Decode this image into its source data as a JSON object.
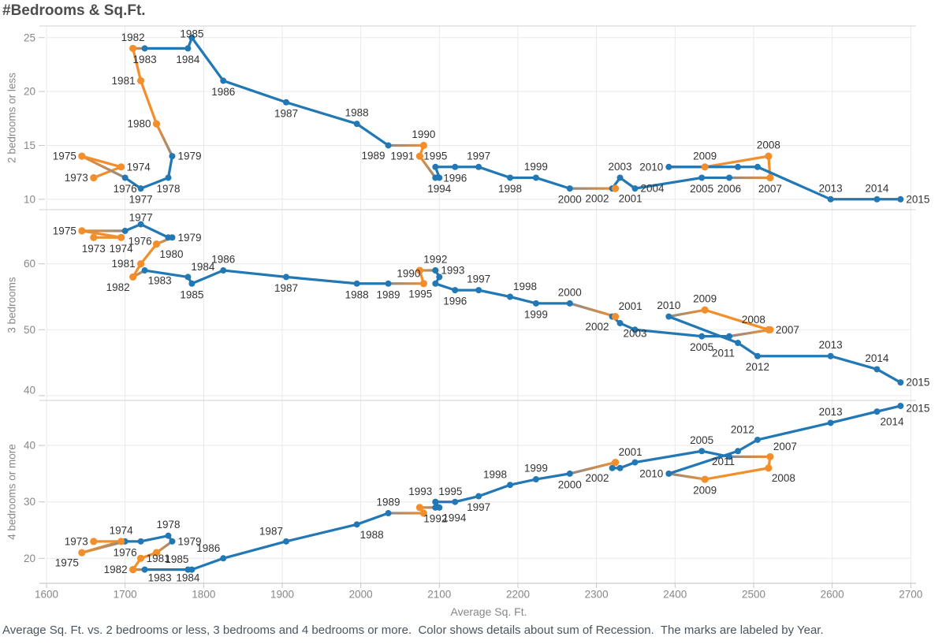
{
  "title": "#Bedrooms & Sq.Ft.",
  "caption": "Average Sq. Ft. vs. 2 bedrooms or less, 3 bedrooms and 4 bedrooms or more.  Color shows details about sum of Recession.  The marks are labeled by Year.",
  "colors": {
    "recession_orange": "#f28e2b",
    "normal_blue": "#2278b5",
    "mixed_gray": "#8b8b8b",
    "gridline": "#e9e9e9",
    "panel_border": "#d2d2d2",
    "axis_line": "#bdbdbd",
    "tick_mark": "#c6c6c6",
    "axis_text": "#878787",
    "year_label_text": "#333333"
  },
  "chart_data": {
    "type": "line",
    "title": "#Bedrooms & Sq.Ft.",
    "xlabel": "Average Sq. Ft.",
    "x_ticks": [
      1600,
      1700,
      1800,
      1900,
      2000,
      2100,
      2200,
      2300,
      2400,
      2500,
      2600,
      2700
    ],
    "x_range": [
      1600,
      2700
    ],
    "grid": true,
    "legend": "none",
    "marks_labeled_by": "Year",
    "color_by": "sum of Recession",
    "recession_years": [
      1973,
      1974,
      1975,
      1980,
      1981,
      1982,
      1990,
      1991,
      2001,
      2007,
      2008,
      2009
    ],
    "panels": [
      {
        "ylabel": "2 bedrooms or less",
        "y_ticks": [
          25,
          20,
          15,
          10
        ],
        "series_key": "pct_2bed_or_less"
      },
      {
        "ylabel": "3 bedrooms",
        "y_ticks": [
          60,
          50,
          40
        ],
        "series_key": "pct_3bed"
      },
      {
        "ylabel": "4 bedrooms or more",
        "y_ticks": [
          40,
          30,
          20
        ],
        "series_key": "pct_4bed_or_more"
      }
    ],
    "points": [
      {
        "year": 1973,
        "avg_sqft": 1660,
        "pct_2bed_or_less": 12,
        "pct_3bed": 64,
        "pct_4bed_or_more": 23,
        "labels": [
          "l",
          "b",
          "l"
        ]
      },
      {
        "year": 1974,
        "avg_sqft": 1695,
        "pct_2bed_or_less": 13,
        "pct_3bed": 64,
        "pct_4bed_or_more": 23,
        "labels": [
          "r",
          "b",
          "t"
        ]
      },
      {
        "year": 1975,
        "avg_sqft": 1645,
        "pct_2bed_or_less": 14,
        "pct_3bed": 65,
        "pct_4bed_or_more": 21,
        "labels": [
          "l",
          "l",
          "bl"
        ]
      },
      {
        "year": 1976,
        "avg_sqft": 1700,
        "pct_2bed_or_less": 12,
        "pct_3bed": 65,
        "pct_4bed_or_more": 23,
        "labels": [
          "b",
          "br",
          "b"
        ]
      },
      {
        "year": 1977,
        "avg_sqft": 1720,
        "pct_2bed_or_less": 11,
        "pct_3bed": 66,
        "pct_4bed_or_more": 23,
        "labels": [
          "b",
          "t",
          ""
        ]
      },
      {
        "year": 1978,
        "avg_sqft": 1755,
        "pct_2bed_or_less": 12,
        "pct_3bed": 64,
        "pct_4bed_or_more": 24,
        "labels": [
          "b",
          "",
          "t"
        ]
      },
      {
        "year": 1979,
        "avg_sqft": 1760,
        "pct_2bed_or_less": 14,
        "pct_3bed": 64,
        "pct_4bed_or_more": 23,
        "labels": [
          "r",
          "r",
          "r"
        ]
      },
      {
        "year": 1980,
        "avg_sqft": 1740,
        "pct_2bed_or_less": 17,
        "pct_3bed": 63,
        "pct_4bed_or_more": 21,
        "labels": [
          "l",
          "br",
          ""
        ]
      },
      {
        "year": 1981,
        "avg_sqft": 1720,
        "pct_2bed_or_less": 21,
        "pct_3bed": 60,
        "pct_4bed_or_more": 20,
        "labels": [
          "l",
          "l",
          "r"
        ]
      },
      {
        "year": 1982,
        "avg_sqft": 1710,
        "pct_2bed_or_less": 24,
        "pct_3bed": 58,
        "pct_4bed_or_more": 18,
        "labels": [
          "t",
          "bl",
          "l"
        ]
      },
      {
        "year": 1983,
        "avg_sqft": 1725,
        "pct_2bed_or_less": 24,
        "pct_3bed": 59,
        "pct_4bed_or_more": 18,
        "labels": [
          "b",
          "br",
          "br"
        ]
      },
      {
        "year": 1984,
        "avg_sqft": 1780,
        "pct_2bed_or_less": 24,
        "pct_3bed": 58,
        "pct_4bed_or_more": 18,
        "labels": [
          "b",
          "tr",
          "b"
        ]
      },
      {
        "year": 1985,
        "avg_sqft": 1785,
        "pct_2bed_or_less": 25,
        "pct_3bed": 57,
        "pct_4bed_or_more": 18,
        "labels": [
          "t",
          "b",
          "tl"
        ]
      },
      {
        "year": 1986,
        "avg_sqft": 1825,
        "pct_2bed_or_less": 21,
        "pct_3bed": 59,
        "pct_4bed_or_more": 20,
        "labels": [
          "b",
          "t",
          "tl"
        ]
      },
      {
        "year": 1987,
        "avg_sqft": 1905,
        "pct_2bed_or_less": 19,
        "pct_3bed": 58,
        "pct_4bed_or_more": 23,
        "labels": [
          "b",
          "b",
          "tl"
        ]
      },
      {
        "year": 1988,
        "avg_sqft": 1995,
        "pct_2bed_or_less": 17,
        "pct_3bed": 57,
        "pct_4bed_or_more": 26,
        "labels": [
          "t",
          "b",
          "br"
        ]
      },
      {
        "year": 1989,
        "avg_sqft": 2035,
        "pct_2bed_or_less": 15,
        "pct_3bed": 57,
        "pct_4bed_or_more": 28,
        "labels": [
          "bl",
          "b",
          "t"
        ]
      },
      {
        "year": 1990,
        "avg_sqft": 2080,
        "pct_2bed_or_less": 15,
        "pct_3bed": 57,
        "pct_4bed_or_more": 28,
        "labels": [
          "t",
          "tl",
          ""
        ]
      },
      {
        "year": 1991,
        "avg_sqft": 2075,
        "pct_2bed_or_less": 14,
        "pct_3bed": 59,
        "pct_4bed_or_more": 29,
        "labels": [
          "l",
          "",
          ""
        ]
      },
      {
        "year": 1992,
        "avg_sqft": 2095,
        "pct_2bed_or_less": 12,
        "pct_3bed": 59,
        "pct_4bed_or_more": 29,
        "labels": [
          "",
          "t",
          "b"
        ]
      },
      {
        "year": 1993,
        "avg_sqft": 2095,
        "pct_2bed_or_less": 12,
        "pct_3bed": 59,
        "pct_4bed_or_more": 30,
        "labels": [
          "",
          "r",
          "tl"
        ]
      },
      {
        "year": 1994,
        "avg_sqft": 2100,
        "pct_2bed_or_less": 12,
        "pct_3bed": 58,
        "pct_4bed_or_more": 29,
        "labels": [
          "b",
          "",
          "br"
        ]
      },
      {
        "year": 1995,
        "avg_sqft": 2095,
        "pct_2bed_or_less": 13,
        "pct_3bed": 57,
        "pct_4bed_or_more": 30,
        "labels": [
          "t",
          "bl",
          "tr"
        ]
      },
      {
        "year": 1996,
        "avg_sqft": 2120,
        "pct_2bed_or_less": 13,
        "pct_3bed": 56,
        "pct_4bed_or_more": 30,
        "labels": [
          "b",
          "b",
          ""
        ]
      },
      {
        "year": 1997,
        "avg_sqft": 2150,
        "pct_2bed_or_less": 13,
        "pct_3bed": 56,
        "pct_4bed_or_more": 31,
        "labels": [
          "t",
          "t",
          "b"
        ]
      },
      {
        "year": 1998,
        "avg_sqft": 2190,
        "pct_2bed_or_less": 12,
        "pct_3bed": 55,
        "pct_4bed_or_more": 33,
        "labels": [
          "b",
          "tr",
          "tl"
        ]
      },
      {
        "year": 1999,
        "avg_sqft": 2223,
        "pct_2bed_or_less": 12,
        "pct_3bed": 54,
        "pct_4bed_or_more": 34,
        "labels": [
          "t",
          "b",
          "t"
        ]
      },
      {
        "year": 2000,
        "avg_sqft": 2266,
        "pct_2bed_or_less": 11,
        "pct_3bed": 54,
        "pct_4bed_or_more": 35,
        "labels": [
          "b",
          "t",
          "b"
        ]
      },
      {
        "year": 2001,
        "avg_sqft": 2324,
        "pct_2bed_or_less": 11,
        "pct_3bed": 52,
        "pct_4bed_or_more": 37,
        "labels": [
          "br",
          "tr",
          "tr"
        ]
      },
      {
        "year": 2002,
        "avg_sqft": 2320,
        "pct_2bed_or_less": 11,
        "pct_3bed": 52,
        "pct_4bed_or_more": 36,
        "labels": [
          "bl",
          "bl",
          "bl"
        ]
      },
      {
        "year": 2003,
        "avg_sqft": 2330,
        "pct_2bed_or_less": 12,
        "pct_3bed": 51,
        "pct_4bed_or_more": 36,
        "labels": [
          "t",
          "br",
          ""
        ]
      },
      {
        "year": 2004,
        "avg_sqft": 2349,
        "pct_2bed_or_less": 11,
        "pct_3bed": 50,
        "pct_4bed_or_more": 37,
        "labels": [
          "r",
          "",
          ""
        ]
      },
      {
        "year": 2005,
        "avg_sqft": 2434,
        "pct_2bed_or_less": 12,
        "pct_3bed": 49,
        "pct_4bed_or_more": 39,
        "labels": [
          "b",
          "b",
          "t"
        ]
      },
      {
        "year": 2006,
        "avg_sqft": 2469,
        "pct_2bed_or_less": 12,
        "pct_3bed": 49,
        "pct_4bed_or_more": 38,
        "labels": [
          "b",
          "",
          ""
        ]
      },
      {
        "year": 2007,
        "avg_sqft": 2521,
        "pct_2bed_or_less": 12,
        "pct_3bed": 50,
        "pct_4bed_or_more": 38,
        "labels": [
          "b",
          "r",
          "tr"
        ]
      },
      {
        "year": 2008,
        "avg_sqft": 2519,
        "pct_2bed_or_less": 14,
        "pct_3bed": 50,
        "pct_4bed_or_more": 36,
        "labels": [
          "t",
          "tl",
          "br"
        ]
      },
      {
        "year": 2009,
        "avg_sqft": 2438,
        "pct_2bed_or_less": 13,
        "pct_3bed": 53,
        "pct_4bed_or_more": 34,
        "labels": [
          "t",
          "t",
          "b"
        ]
      },
      {
        "year": 2010,
        "avg_sqft": 2392,
        "pct_2bed_or_less": 13,
        "pct_3bed": 52,
        "pct_4bed_or_more": 35,
        "labels": [
          "l",
          "t",
          "l"
        ]
      },
      {
        "year": 2011,
        "avg_sqft": 2480,
        "pct_2bed_or_less": 13,
        "pct_3bed": 48,
        "pct_4bed_or_more": 39,
        "labels": [
          "",
          "bl",
          "bl"
        ]
      },
      {
        "year": 2012,
        "avg_sqft": 2505,
        "pct_2bed_or_less": 13,
        "pct_3bed": 46,
        "pct_4bed_or_more": 41,
        "labels": [
          "",
          "b",
          "tl"
        ]
      },
      {
        "year": 2013,
        "avg_sqft": 2598,
        "pct_2bed_or_less": 10,
        "pct_3bed": 46,
        "pct_4bed_or_more": 44,
        "labels": [
          "t",
          "t",
          "t"
        ]
      },
      {
        "year": 2014,
        "avg_sqft": 2657,
        "pct_2bed_or_less": 10,
        "pct_3bed": 44,
        "pct_4bed_or_more": 46,
        "labels": [
          "t",
          "t",
          "br"
        ]
      },
      {
        "year": 2015,
        "avg_sqft": 2687,
        "pct_2bed_or_less": 10,
        "pct_3bed": 42,
        "pct_4bed_or_more": 47,
        "labels": [
          "r",
          "r",
          "r"
        ]
      }
    ]
  }
}
